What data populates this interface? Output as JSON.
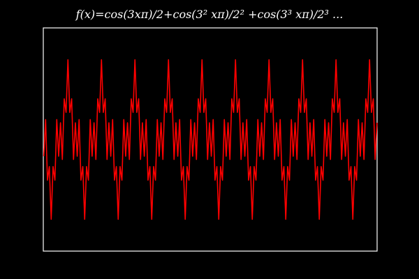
{
  "chart_data": {
    "type": "line",
    "title": "f(x)=cos(3xπ)/2+cos(3² xπ)/2² +cos(3³ xπ)/2³ ...",
    "xlim": [
      -0.49,
      6.15
    ],
    "ylim": [
      -1.4,
      1.4
    ],
    "series": [
      {
        "color": "#ff0000",
        "x": [
          -0.481,
          -0.444,
          -0.407,
          -0.37,
          -0.333,
          -0.296,
          -0.259,
          -0.222,
          -0.185,
          -0.148,
          -0.111,
          -0.074,
          -0.037,
          0,
          0.037,
          0.074,
          0.111,
          0.148,
          0.185,
          0.222,
          0.259,
          0.296,
          0.333,
          0.37,
          0.407,
          0.444,
          0.481,
          0.519,
          0.556,
          0.593,
          0.63,
          0.667,
          0.704,
          0.741,
          0.778,
          0.815,
          0.852,
          0.889,
          0.926,
          0.963,
          1,
          1.037,
          1.074,
          1.111,
          1.148,
          1.185,
          1.222,
          1.259,
          1.296,
          1.333,
          1.37,
          1.407,
          1.444,
          1.481,
          1.519,
          1.556,
          1.593,
          1.63,
          1.667,
          1.704,
          1.741,
          1.778,
          1.815,
          1.852,
          1.889,
          1.926,
          1.963,
          2,
          2.037,
          2.074,
          2.111,
          2.148,
          2.185,
          2.222,
          2.259,
          2.296,
          2.333,
          2.37,
          2.407,
          2.444,
          2.481,
          2.519,
          2.556,
          2.593,
          2.63,
          2.667,
          2.704,
          2.741,
          2.778,
          2.815,
          2.852,
          2.889,
          2.926,
          2.963,
          3,
          3.037,
          3.074,
          3.111,
          3.148,
          3.185,
          3.222,
          3.259,
          3.296,
          3.333,
          3.37,
          3.407,
          3.444,
          3.481,
          3.519,
          3.556,
          3.593,
          3.63,
          3.667,
          3.704,
          3.741,
          3.778,
          3.815,
          3.852,
          3.889,
          3.926,
          3.963,
          4,
          4.037,
          4.074,
          4.111,
          4.148,
          4.185,
          4.222,
          4.259,
          4.296,
          4.333,
          4.37,
          4.407,
          4.444,
          4.481,
          4.519,
          4.556,
          4.593,
          4.63,
          4.667,
          4.704,
          4.741,
          4.778,
          4.815,
          4.852,
          4.889,
          4.926,
          4.963,
          5,
          5.037,
          5.074,
          5.111,
          5.148,
          5.185,
          5.222,
          5.259,
          5.296,
          5.333,
          5.37,
          5.407,
          5.444,
          5.481,
          5.519,
          5.556,
          5.593,
          5.63,
          5.667,
          5.704,
          5.741,
          5.778,
          5.815,
          5.852,
          5.889,
          5.926,
          5.963,
          6,
          6.037,
          6.074,
          6.111,
          6.148
        ],
        "values": [
          -0.21,
          0.25,
          -0.51,
          -0.34,
          -1,
          -0.34,
          -0.51,
          0.25,
          -0.21,
          0.21,
          -0.25,
          0.51,
          0.34,
          1,
          0.34,
          0.51,
          -0.25,
          0.21,
          -0.21,
          0.25,
          -0.51,
          -0.34,
          -1,
          -0.34,
          -0.51,
          0.25,
          -0.21,
          0.21,
          -0.25,
          0.51,
          0.34,
          1,
          0.34,
          0.51,
          -0.25,
          0.21,
          -0.21,
          0.25,
          -0.51,
          -0.34,
          -1,
          -0.34,
          -0.51,
          0.25,
          -0.21,
          0.21,
          -0.25,
          0.51,
          0.34,
          1,
          0.34,
          0.51,
          -0.25,
          0.21,
          -0.21,
          0.25,
          -0.51,
          -0.34,
          -1,
          -0.34,
          -0.51,
          0.25,
          -0.21,
          0.21,
          -0.25,
          0.51,
          0.34,
          1,
          0.34,
          0.51,
          -0.25,
          0.21,
          -0.21,
          0.25,
          -0.51,
          -0.34,
          -1,
          -0.34,
          -0.51,
          0.25,
          -0.21,
          0.21,
          -0.25,
          0.51,
          0.34,
          1,
          0.34,
          0.51,
          -0.25,
          0.21,
          -0.21,
          0.25,
          -0.51,
          -0.34,
          -1,
          -0.34,
          -0.51,
          0.25,
          -0.21,
          0.21,
          -0.25,
          0.51,
          0.34,
          1,
          0.34,
          0.51,
          -0.25,
          0.21,
          -0.21,
          0.25,
          -0.51,
          -0.34,
          -1,
          -0.34,
          -0.51,
          0.25,
          -0.21,
          0.21,
          -0.25,
          0.51,
          0.34,
          1,
          0.34,
          0.51,
          -0.25,
          0.21,
          -0.21,
          0.25,
          -0.51,
          -0.34,
          -1,
          -0.34,
          -0.51,
          0.25,
          -0.21,
          0.21,
          -0.25,
          0.51,
          0.34,
          1,
          0.34,
          0.51,
          -0.25,
          0.21,
          -0.21,
          0.25,
          -0.51,
          -0.34,
          -1,
          -0.34,
          -0.51,
          0.25,
          -0.21,
          0.21,
          -0.25,
          0.51,
          0.34,
          1,
          0.34,
          0.51,
          -0.25,
          0.21,
          -0.21,
          0.25,
          -0.51,
          -0.34,
          -1,
          -0.34,
          -0.51,
          0.25,
          -0.21,
          0.21,
          -0.25,
          0.51,
          0.34,
          1,
          0.34,
          0.51,
          -0.25,
          0.21
        ]
      }
    ]
  }
}
